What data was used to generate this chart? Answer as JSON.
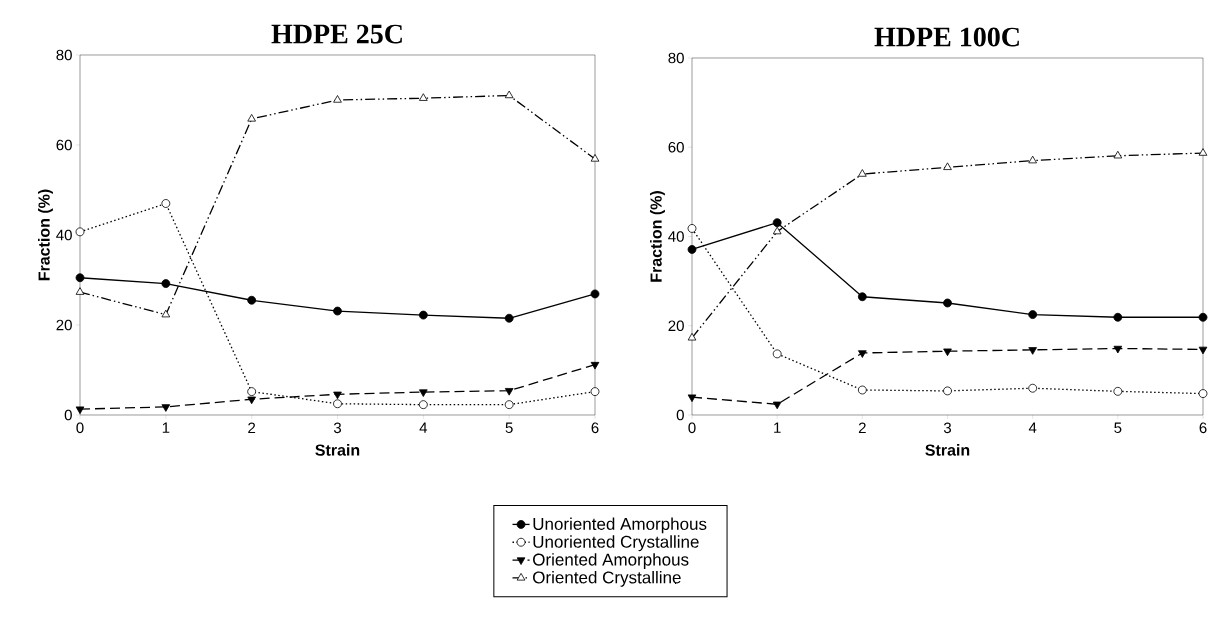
{
  "chart_data": [
    {
      "type": "line",
      "title": "HDPE 25C",
      "xlabel": "Strain",
      "ylabel": "Fraction (%)",
      "x": [
        0,
        1,
        2,
        3,
        4,
        5,
        6
      ],
      "xlim": [
        0,
        6
      ],
      "xticks": [
        0,
        1,
        2,
        3,
        4,
        5,
        6
      ],
      "ylim": [
        0,
        80
      ],
      "yticks": [
        0,
        20,
        40,
        60,
        80
      ],
      "grid": false,
      "legend": "bottom",
      "series": [
        {
          "name": "Unoriented Amorphous",
          "color": "#000000",
          "marker": "circle",
          "line_style": "solid",
          "values": [
            30.5,
            29.2,
            25.5,
            23.1,
            22.2,
            21.5,
            26.9
          ]
        },
        {
          "name": "Unoriented Crystalline",
          "color": "#000000",
          "marker": "circle-open",
          "line_style": "dotted",
          "values": [
            40.7,
            47.0,
            5.2,
            2.5,
            2.3,
            2.3,
            5.2
          ]
        },
        {
          "name": "Oriented Amorphous",
          "color": "#000000",
          "marker": "triangle-down",
          "line_style": "dashed",
          "values": [
            1.3,
            1.8,
            3.5,
            4.6,
            5.1,
            5.4,
            11.2
          ]
        },
        {
          "name": "Oriented Crystalline",
          "color": "#000000",
          "marker": "triangle-open",
          "line_style": "dashdotdotted",
          "values": [
            27.3,
            22.3,
            65.8,
            70.0,
            70.4,
            71.0,
            56.9
          ]
        }
      ]
    },
    {
      "type": "line",
      "title": "HDPE 100C",
      "xlabel": "Strain",
      "ylabel": "Fraction (%)",
      "x": [
        0,
        1,
        2,
        3,
        4,
        5,
        6
      ],
      "xlim": [
        0,
        6
      ],
      "xticks": [
        0,
        1,
        2,
        3,
        4,
        5,
        6
      ],
      "ylim": [
        0,
        80
      ],
      "yticks": [
        0,
        20,
        40,
        60,
        80
      ],
      "grid": false,
      "legend": false,
      "series": [
        {
          "color": "#000000",
          "marker": "circle",
          "line_style": "solid",
          "values": [
            37.1,
            43.1,
            26.5,
            25.1,
            22.5,
            21.9,
            21.9
          ]
        },
        {
          "color": "#000000",
          "marker": "circle-open",
          "line_style": "dotted",
          "values": [
            41.8,
            13.7,
            5.6,
            5.4,
            6.0,
            5.3,
            4.8
          ]
        },
        {
          "color": "#000000",
          "marker": "triangle-down",
          "line_style": "dashed",
          "values": [
            4.0,
            2.4,
            13.9,
            14.3,
            14.6,
            14.9,
            14.7
          ]
        },
        {
          "color": "#000000",
          "marker": "triangle-open",
          "line_style": "dashdotdotted",
          "values": [
            17.3,
            41.1,
            54.0,
            55.5,
            57.0,
            58.1,
            58.7
          ]
        }
      ]
    }
  ]
}
